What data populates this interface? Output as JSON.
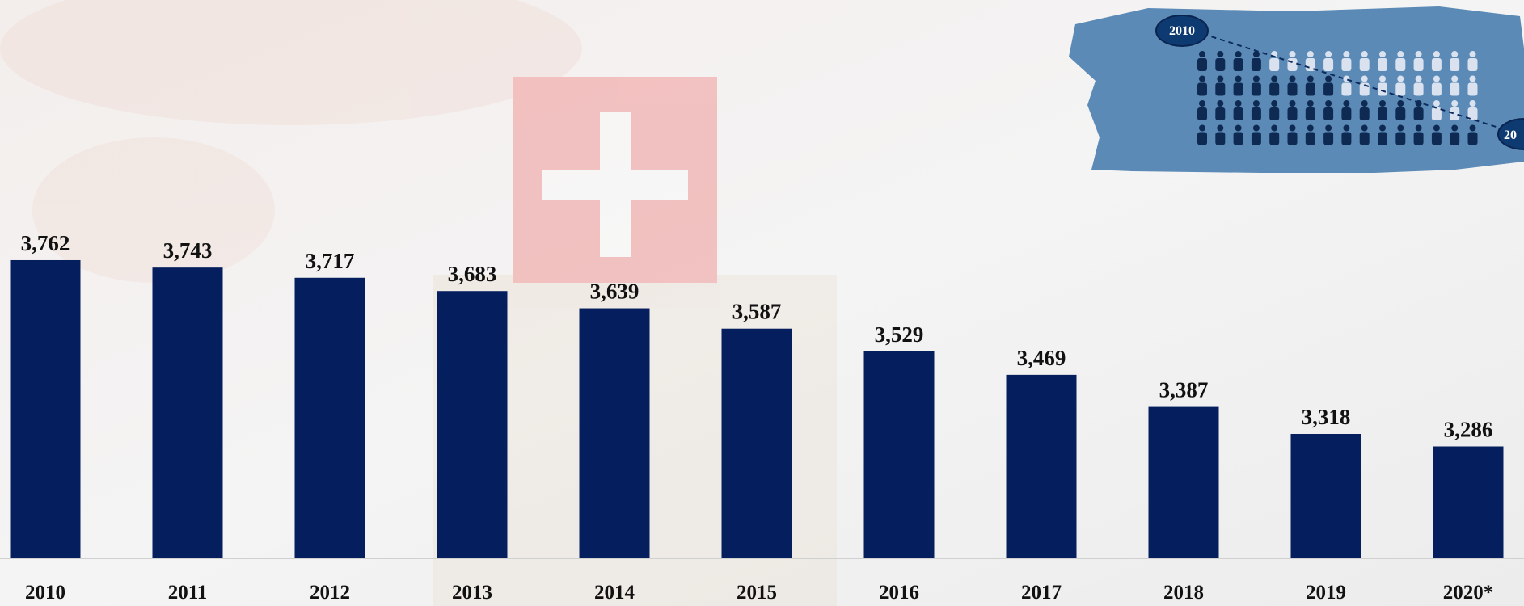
{
  "chart_data": {
    "type": "bar",
    "categories": [
      "2010",
      "2011",
      "2012",
      "2013",
      "2014",
      "2015",
      "2016",
      "2017",
      "2018",
      "2019",
      "2020*"
    ],
    "values": [
      3762,
      3743,
      3717,
      3683,
      3639,
      3587,
      3529,
      3469,
      3387,
      3318,
      3286
    ],
    "value_labels": [
      "3,762",
      "3,743",
      "3,717",
      "3,683",
      "3,639",
      "3,587",
      "3,529",
      "3,469",
      "3,387",
      "3,318",
      "3,286"
    ],
    "color": "#041e5e",
    "ylim": [
      3000,
      4400
    ]
  },
  "inset": {
    "start_label": "2010",
    "end_label": "20"
  }
}
